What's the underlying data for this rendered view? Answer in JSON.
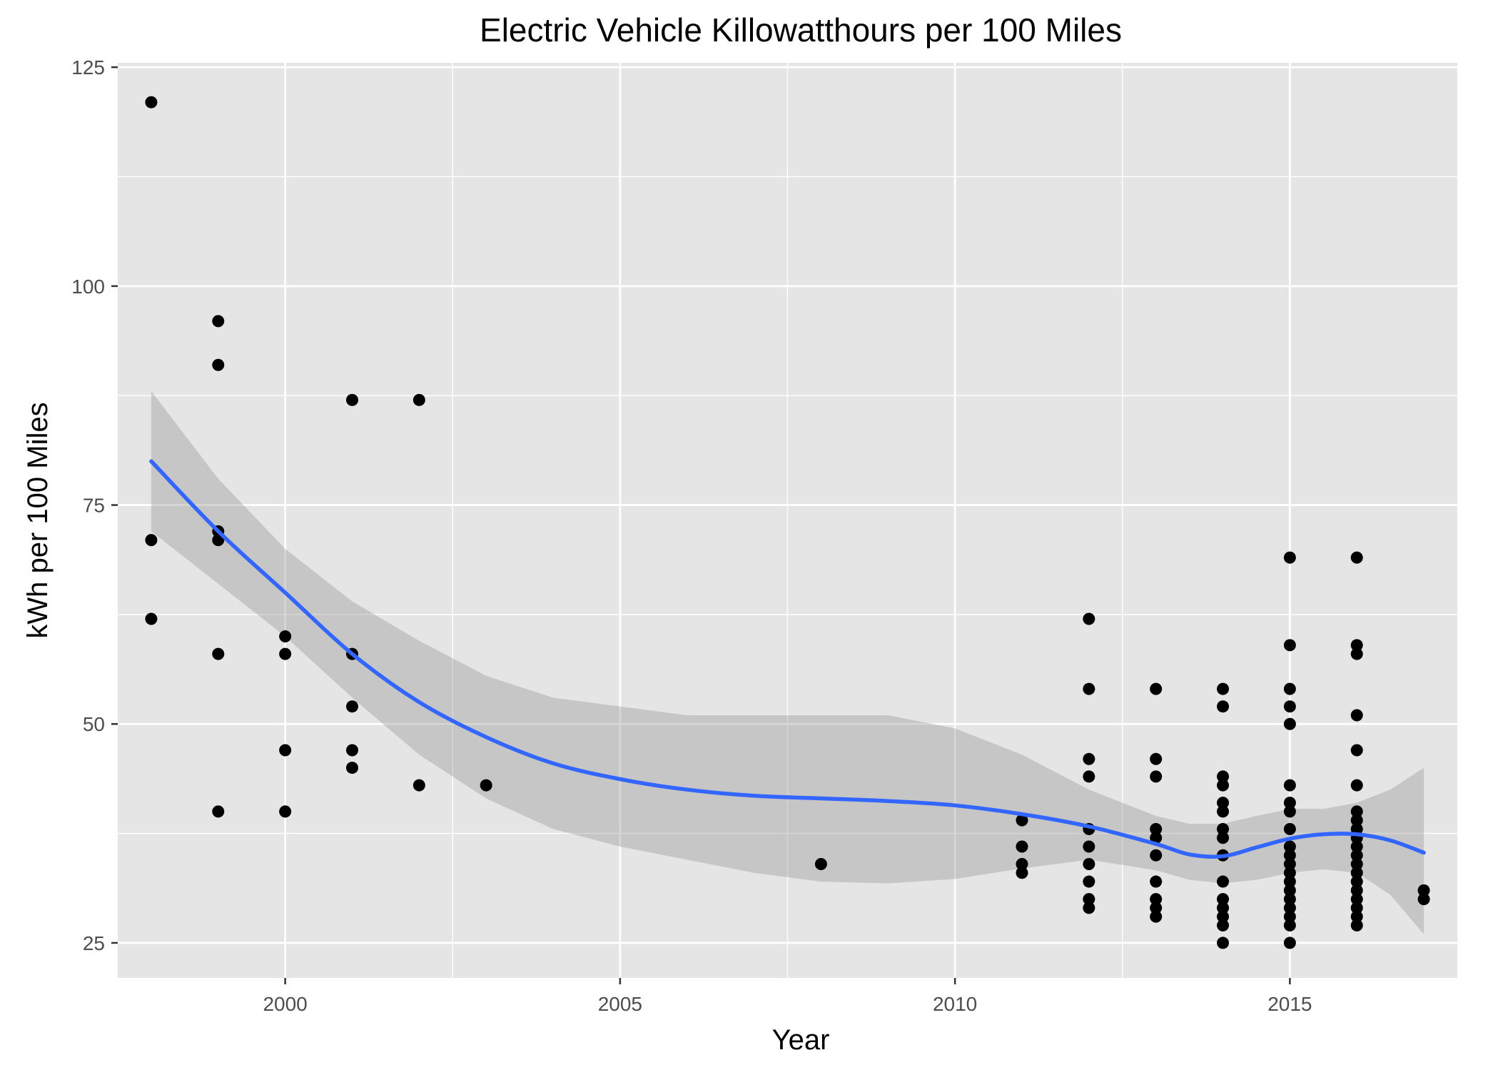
{
  "chart_data": {
    "type": "scatter",
    "title": "Electric Vehicle Killowatthours per 100 Miles",
    "xlabel": "Year",
    "ylabel": "kWh per 100 Miles",
    "xlim": [
      1997.5,
      2017.5
    ],
    "ylim": [
      21,
      125.5
    ],
    "x_ticks": [
      2000,
      2005,
      2010,
      2015
    ],
    "y_ticks": [
      25,
      50,
      75,
      100,
      125
    ],
    "grid": true,
    "legend": "none",
    "colors": {
      "panel": "#E5E5E5",
      "grid": "#FFFFFF",
      "point": "#000000",
      "smooth_line": "#3366FF",
      "confidence_band": "#999999",
      "tick_text": "#4D4D4D",
      "tick_mark": "#333333"
    },
    "points": [
      {
        "x": 1998,
        "y": 121
      },
      {
        "x": 1998,
        "y": 71
      },
      {
        "x": 1998,
        "y": 62
      },
      {
        "x": 1999,
        "y": 96
      },
      {
        "x": 1999,
        "y": 91
      },
      {
        "x": 1999,
        "y": 72
      },
      {
        "x": 1999,
        "y": 71
      },
      {
        "x": 1999,
        "y": 58
      },
      {
        "x": 1999,
        "y": 40
      },
      {
        "x": 2000,
        "y": 60
      },
      {
        "x": 2000,
        "y": 58
      },
      {
        "x": 2000,
        "y": 47
      },
      {
        "x": 2000,
        "y": 40
      },
      {
        "x": 2001,
        "y": 87
      },
      {
        "x": 2001,
        "y": 58
      },
      {
        "x": 2001,
        "y": 52
      },
      {
        "x": 2001,
        "y": 47
      },
      {
        "x": 2001,
        "y": 45
      },
      {
        "x": 2002,
        "y": 87
      },
      {
        "x": 2002,
        "y": 43
      },
      {
        "x": 2003,
        "y": 43
      },
      {
        "x": 2008,
        "y": 34
      },
      {
        "x": 2011,
        "y": 39
      },
      {
        "x": 2011,
        "y": 36
      },
      {
        "x": 2011,
        "y": 34
      },
      {
        "x": 2011,
        "y": 33
      },
      {
        "x": 2012,
        "y": 62
      },
      {
        "x": 2012,
        "y": 54
      },
      {
        "x": 2012,
        "y": 46
      },
      {
        "x": 2012,
        "y": 44
      },
      {
        "x": 2012,
        "y": 38
      },
      {
        "x": 2012,
        "y": 36
      },
      {
        "x": 2012,
        "y": 34
      },
      {
        "x": 2012,
        "y": 32
      },
      {
        "x": 2012,
        "y": 30
      },
      {
        "x": 2012,
        "y": 29
      },
      {
        "x": 2013,
        "y": 54
      },
      {
        "x": 2013,
        "y": 46
      },
      {
        "x": 2013,
        "y": 44
      },
      {
        "x": 2013,
        "y": 38
      },
      {
        "x": 2013,
        "y": 37
      },
      {
        "x": 2013,
        "y": 35
      },
      {
        "x": 2013,
        "y": 32
      },
      {
        "x": 2013,
        "y": 30
      },
      {
        "x": 2013,
        "y": 29
      },
      {
        "x": 2013,
        "y": 28
      },
      {
        "x": 2014,
        "y": 54
      },
      {
        "x": 2014,
        "y": 52
      },
      {
        "x": 2014,
        "y": 44
      },
      {
        "x": 2014,
        "y": 43
      },
      {
        "x": 2014,
        "y": 41
      },
      {
        "x": 2014,
        "y": 40
      },
      {
        "x": 2014,
        "y": 38
      },
      {
        "x": 2014,
        "y": 37
      },
      {
        "x": 2014,
        "y": 35
      },
      {
        "x": 2014,
        "y": 32
      },
      {
        "x": 2014,
        "y": 30
      },
      {
        "x": 2014,
        "y": 29
      },
      {
        "x": 2014,
        "y": 28
      },
      {
        "x": 2014,
        "y": 27
      },
      {
        "x": 2014,
        "y": 25
      },
      {
        "x": 2015,
        "y": 69
      },
      {
        "x": 2015,
        "y": 59
      },
      {
        "x": 2015,
        "y": 54
      },
      {
        "x": 2015,
        "y": 52
      },
      {
        "x": 2015,
        "y": 50
      },
      {
        "x": 2015,
        "y": 43
      },
      {
        "x": 2015,
        "y": 41
      },
      {
        "x": 2015,
        "y": 40
      },
      {
        "x": 2015,
        "y": 38
      },
      {
        "x": 2015,
        "y": 36
      },
      {
        "x": 2015,
        "y": 35
      },
      {
        "x": 2015,
        "y": 34
      },
      {
        "x": 2015,
        "y": 33
      },
      {
        "x": 2015,
        "y": 32
      },
      {
        "x": 2015,
        "y": 31
      },
      {
        "x": 2015,
        "y": 30
      },
      {
        "x": 2015,
        "y": 29
      },
      {
        "x": 2015,
        "y": 28
      },
      {
        "x": 2015,
        "y": 27
      },
      {
        "x": 2015,
        "y": 25
      },
      {
        "x": 2016,
        "y": 69
      },
      {
        "x": 2016,
        "y": 59
      },
      {
        "x": 2016,
        "y": 58
      },
      {
        "x": 2016,
        "y": 51
      },
      {
        "x": 2016,
        "y": 47
      },
      {
        "x": 2016,
        "y": 43
      },
      {
        "x": 2016,
        "y": 40
      },
      {
        "x": 2016,
        "y": 39
      },
      {
        "x": 2016,
        "y": 38
      },
      {
        "x": 2016,
        "y": 37
      },
      {
        "x": 2016,
        "y": 36
      },
      {
        "x": 2016,
        "y": 35
      },
      {
        "x": 2016,
        "y": 34
      },
      {
        "x": 2016,
        "y": 33
      },
      {
        "x": 2016,
        "y": 32
      },
      {
        "x": 2016,
        "y": 31
      },
      {
        "x": 2016,
        "y": 30
      },
      {
        "x": 2016,
        "y": 29
      },
      {
        "x": 2016,
        "y": 28
      },
      {
        "x": 2016,
        "y": 27
      },
      {
        "x": 2017,
        "y": 31
      },
      {
        "x": 2017,
        "y": 30
      }
    ],
    "smooth": {
      "method": "loess",
      "x": [
        1998,
        1999,
        2000,
        2001,
        2002,
        2003,
        2004,
        2005,
        2006,
        2007,
        2008,
        2009,
        2010,
        2011,
        2012,
        2013,
        2013.5,
        2014,
        2014.5,
        2015,
        2015.5,
        2016,
        2016.5,
        2017
      ],
      "y": [
        80,
        72,
        65,
        58,
        52.5,
        48.5,
        45.5,
        43.7,
        42.5,
        41.8,
        41.5,
        41.2,
        40.7,
        39.7,
        38.3,
        36.3,
        35.1,
        34.9,
        35.9,
        36.9,
        37.4,
        37.4,
        36.7,
        35.3
      ],
      "ymin": [
        72,
        66,
        60,
        53,
        46.5,
        41.5,
        38,
        36,
        34.5,
        33,
        32,
        31.8,
        32.3,
        33.5,
        34.5,
        33.3,
        32.2,
        31.8,
        32.2,
        33,
        33.4,
        33,
        30.5,
        26
      ],
      "ymax": [
        88,
        78,
        70,
        64,
        59.5,
        55.5,
        53,
        52,
        51,
        51,
        51,
        51,
        49.5,
        46.5,
        42.5,
        39.5,
        38.6,
        38.6,
        39.5,
        40.3,
        40.3,
        41,
        42.5,
        45
      ]
    }
  }
}
